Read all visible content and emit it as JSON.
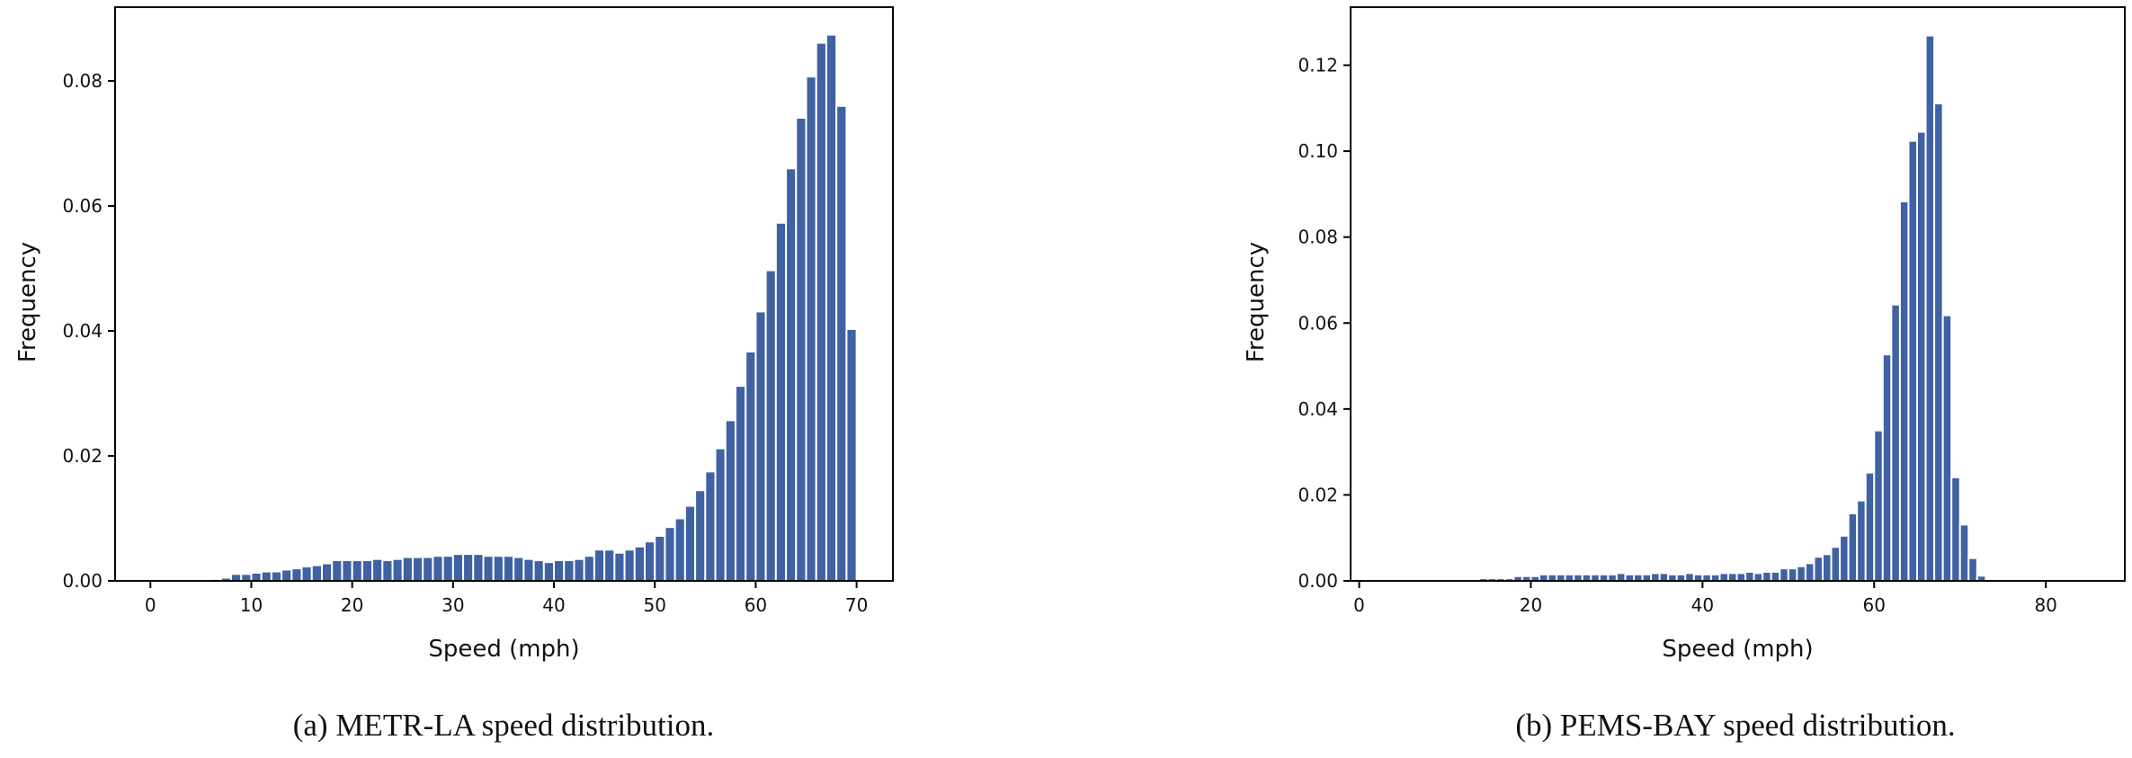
{
  "chart_data": [
    {
      "type": "bar",
      "subtype": "histogram",
      "caption": "(a) METR-LA speed distribution.",
      "xlabel": "Speed (mph)",
      "ylabel": "Frequency",
      "xlim": [
        -3.5,
        73.6
      ],
      "ylim": [
        0,
        0.0918
      ],
      "xticks": [
        0,
        10,
        20,
        30,
        40,
        50,
        60,
        70
      ],
      "xtick_labels": [
        "0",
        "10",
        "20",
        "30",
        "40",
        "50",
        "60",
        "70"
      ],
      "yticks": [
        0,
        0.02,
        0.04,
        0.06,
        0.08
      ],
      "ytick_labels": [
        "0.00",
        "0.02",
        "0.04",
        "0.06",
        "0.08"
      ],
      "grid": false,
      "bar_color": "#3f62a3",
      "bin_width": 1,
      "bin_start": [
        6,
        7,
        8,
        9,
        10,
        11,
        12,
        13,
        14,
        15,
        16,
        17,
        18,
        19,
        20,
        21,
        22,
        23,
        24,
        25,
        26,
        27,
        28,
        29,
        30,
        31,
        32,
        33,
        34,
        35,
        36,
        37,
        38,
        39,
        40,
        41,
        42,
        43,
        44,
        45,
        46,
        47,
        48,
        49,
        50,
        51,
        52,
        53,
        54,
        55,
        56,
        57,
        58,
        59,
        60,
        61,
        62,
        63,
        64,
        65,
        66,
        67,
        68,
        69
      ],
      "values": [
        0.0003,
        0.0005,
        0.0011,
        0.0011,
        0.0013,
        0.0015,
        0.0015,
        0.0018,
        0.002,
        0.0023,
        0.0025,
        0.0028,
        0.0033,
        0.0033,
        0.0033,
        0.0033,
        0.0035,
        0.0033,
        0.0035,
        0.0038,
        0.0038,
        0.0038,
        0.004,
        0.004,
        0.0043,
        0.0043,
        0.0043,
        0.004,
        0.004,
        0.004,
        0.0038,
        0.0035,
        0.0033,
        0.003,
        0.0033,
        0.0033,
        0.0035,
        0.004,
        0.005,
        0.005,
        0.0045,
        0.005,
        0.0055,
        0.0063,
        0.0072,
        0.0086,
        0.01,
        0.012,
        0.0145,
        0.0175,
        0.0212,
        0.0257,
        0.0312,
        0.0367,
        0.0431,
        0.0497,
        0.0573,
        0.066,
        0.0741,
        0.0807,
        0.0861,
        0.0874,
        0.076,
        0.0403
      ]
    },
    {
      "type": "bar",
      "subtype": "histogram",
      "caption": "(b) PEMS-BAY speed distribution.",
      "xlabel": "Speed (mph)",
      "ylabel": "Frequency",
      "xlim": [
        -1,
        89.2
      ],
      "ylim": [
        0,
        0.1335
      ],
      "xticks": [
        0,
        20,
        40,
        60,
        80
      ],
      "xtick_labels": [
        "0",
        "20",
        "40",
        "60",
        "80"
      ],
      "yticks": [
        0,
        0.02,
        0.04,
        0.06,
        0.08,
        0.1,
        0.12
      ],
      "ytick_labels": [
        "0.00",
        "0.02",
        "0.04",
        "0.06",
        "0.08",
        "0.10",
        "0.12"
      ],
      "grid": false,
      "bar_color": "#3f62a3",
      "bin_width": 1,
      "bin_start": [
        11,
        12,
        13,
        14,
        15,
        16,
        17,
        18,
        19,
        20,
        21,
        22,
        23,
        24,
        25,
        26,
        27,
        28,
        29,
        30,
        31,
        32,
        33,
        34,
        35,
        36,
        37,
        38,
        39,
        40,
        41,
        42,
        43,
        44,
        45,
        46,
        47,
        48,
        49,
        50,
        51,
        52,
        53,
        54,
        55,
        56,
        57,
        58,
        59,
        60,
        61,
        62,
        63,
        64,
        65,
        66,
        67,
        68,
        69,
        70,
        71,
        72,
        73
      ],
      "values": [
        0.0003,
        0.0003,
        0.0003,
        0.0006,
        0.0006,
        0.0006,
        0.0006,
        0.0011,
        0.0011,
        0.0011,
        0.0015,
        0.0015,
        0.0015,
        0.0015,
        0.0015,
        0.0015,
        0.0015,
        0.0015,
        0.0015,
        0.0018,
        0.0015,
        0.0015,
        0.0015,
        0.0018,
        0.0018,
        0.0015,
        0.0015,
        0.0018,
        0.0015,
        0.0015,
        0.0015,
        0.0018,
        0.0018,
        0.0018,
        0.0021,
        0.0018,
        0.0021,
        0.0021,
        0.0029,
        0.0029,
        0.0034,
        0.0041,
        0.0056,
        0.0062,
        0.0079,
        0.0105,
        0.0157,
        0.0187,
        0.0252,
        0.035,
        0.0527,
        0.0643,
        0.0883,
        0.1024,
        0.1045,
        0.1269,
        0.1111,
        0.0618,
        0.0241,
        0.0131,
        0.0053,
        0.0012,
        0.0002
      ]
    }
  ]
}
